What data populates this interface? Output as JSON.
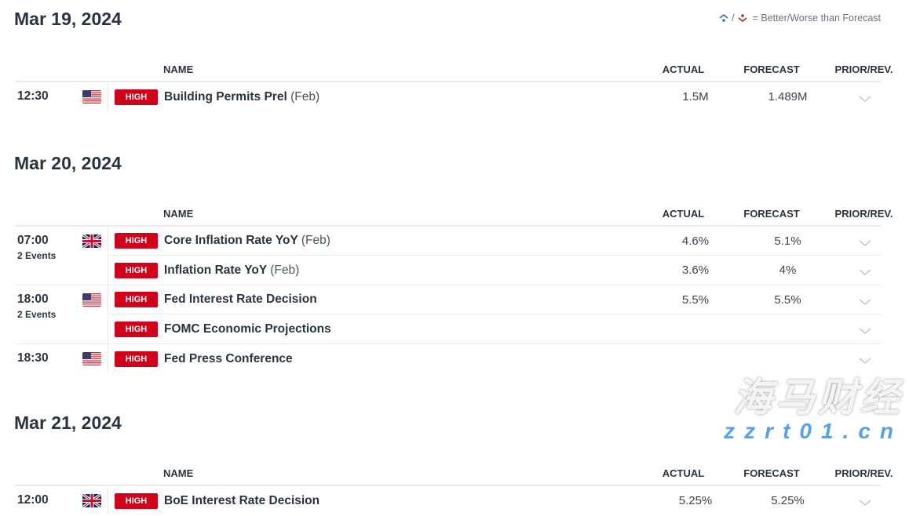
{
  "legend": {
    "text": "= Better/Worse than Forecast",
    "better_color": "#2f6fb5",
    "worse_color": "#b22222"
  },
  "columns": {
    "name": "NAME",
    "actual": "ACTUAL",
    "forecast": "FORECAST",
    "prior": "PRIOR/REV."
  },
  "accent": "#d0021b",
  "sections": [
    {
      "date": "Mar 19, 2024",
      "groups": [
        {
          "time": "12:30",
          "events": "",
          "flag": "us",
          "rows": [
            {
              "impact": "HIGH",
              "name": "Building Permits Prel",
              "period": "(Feb)",
              "actual": "",
              "forecast": "1.5M",
              "prior": "1.489M"
            }
          ]
        }
      ]
    },
    {
      "date": "Mar 20, 2024",
      "groups": [
        {
          "time": "07:00",
          "events": "2 Events",
          "flag": "uk",
          "rows": [
            {
              "impact": "HIGH",
              "name": "Core Inflation Rate YoY",
              "period": "(Feb)",
              "actual": "",
              "forecast": "4.6%",
              "prior": "5.1%"
            },
            {
              "impact": "HIGH",
              "name": "Inflation Rate YoY",
              "period": "(Feb)",
              "actual": "",
              "forecast": "3.6%",
              "prior": "4%"
            }
          ]
        },
        {
          "time": "18:00",
          "events": "2 Events",
          "flag": "us",
          "rows": [
            {
              "impact": "HIGH",
              "name": "Fed Interest Rate Decision",
              "period": "",
              "actual": "",
              "forecast": "5.5%",
              "prior": "5.5%"
            },
            {
              "impact": "HIGH",
              "name": "FOMC Economic Projections",
              "period": "",
              "actual": "",
              "forecast": "",
              "prior": ""
            }
          ]
        },
        {
          "time": "18:30",
          "events": "",
          "flag": "us",
          "rows": [
            {
              "impact": "HIGH",
              "name": "Fed Press Conference",
              "period": "",
              "actual": "",
              "forecast": "",
              "prior": ""
            }
          ]
        }
      ]
    },
    {
      "date": "Mar 21, 2024",
      "groups": [
        {
          "time": "12:00",
          "events": "",
          "flag": "uk",
          "rows": [
            {
              "impact": "HIGH",
              "name": "BoE Interest Rate Decision",
              "period": "",
              "actual": "",
              "forecast": "5.25%",
              "prior": "5.25%"
            }
          ]
        }
      ]
    }
  ],
  "watermark": {
    "title": "海马财经",
    "url": "zzrt01.cn"
  }
}
